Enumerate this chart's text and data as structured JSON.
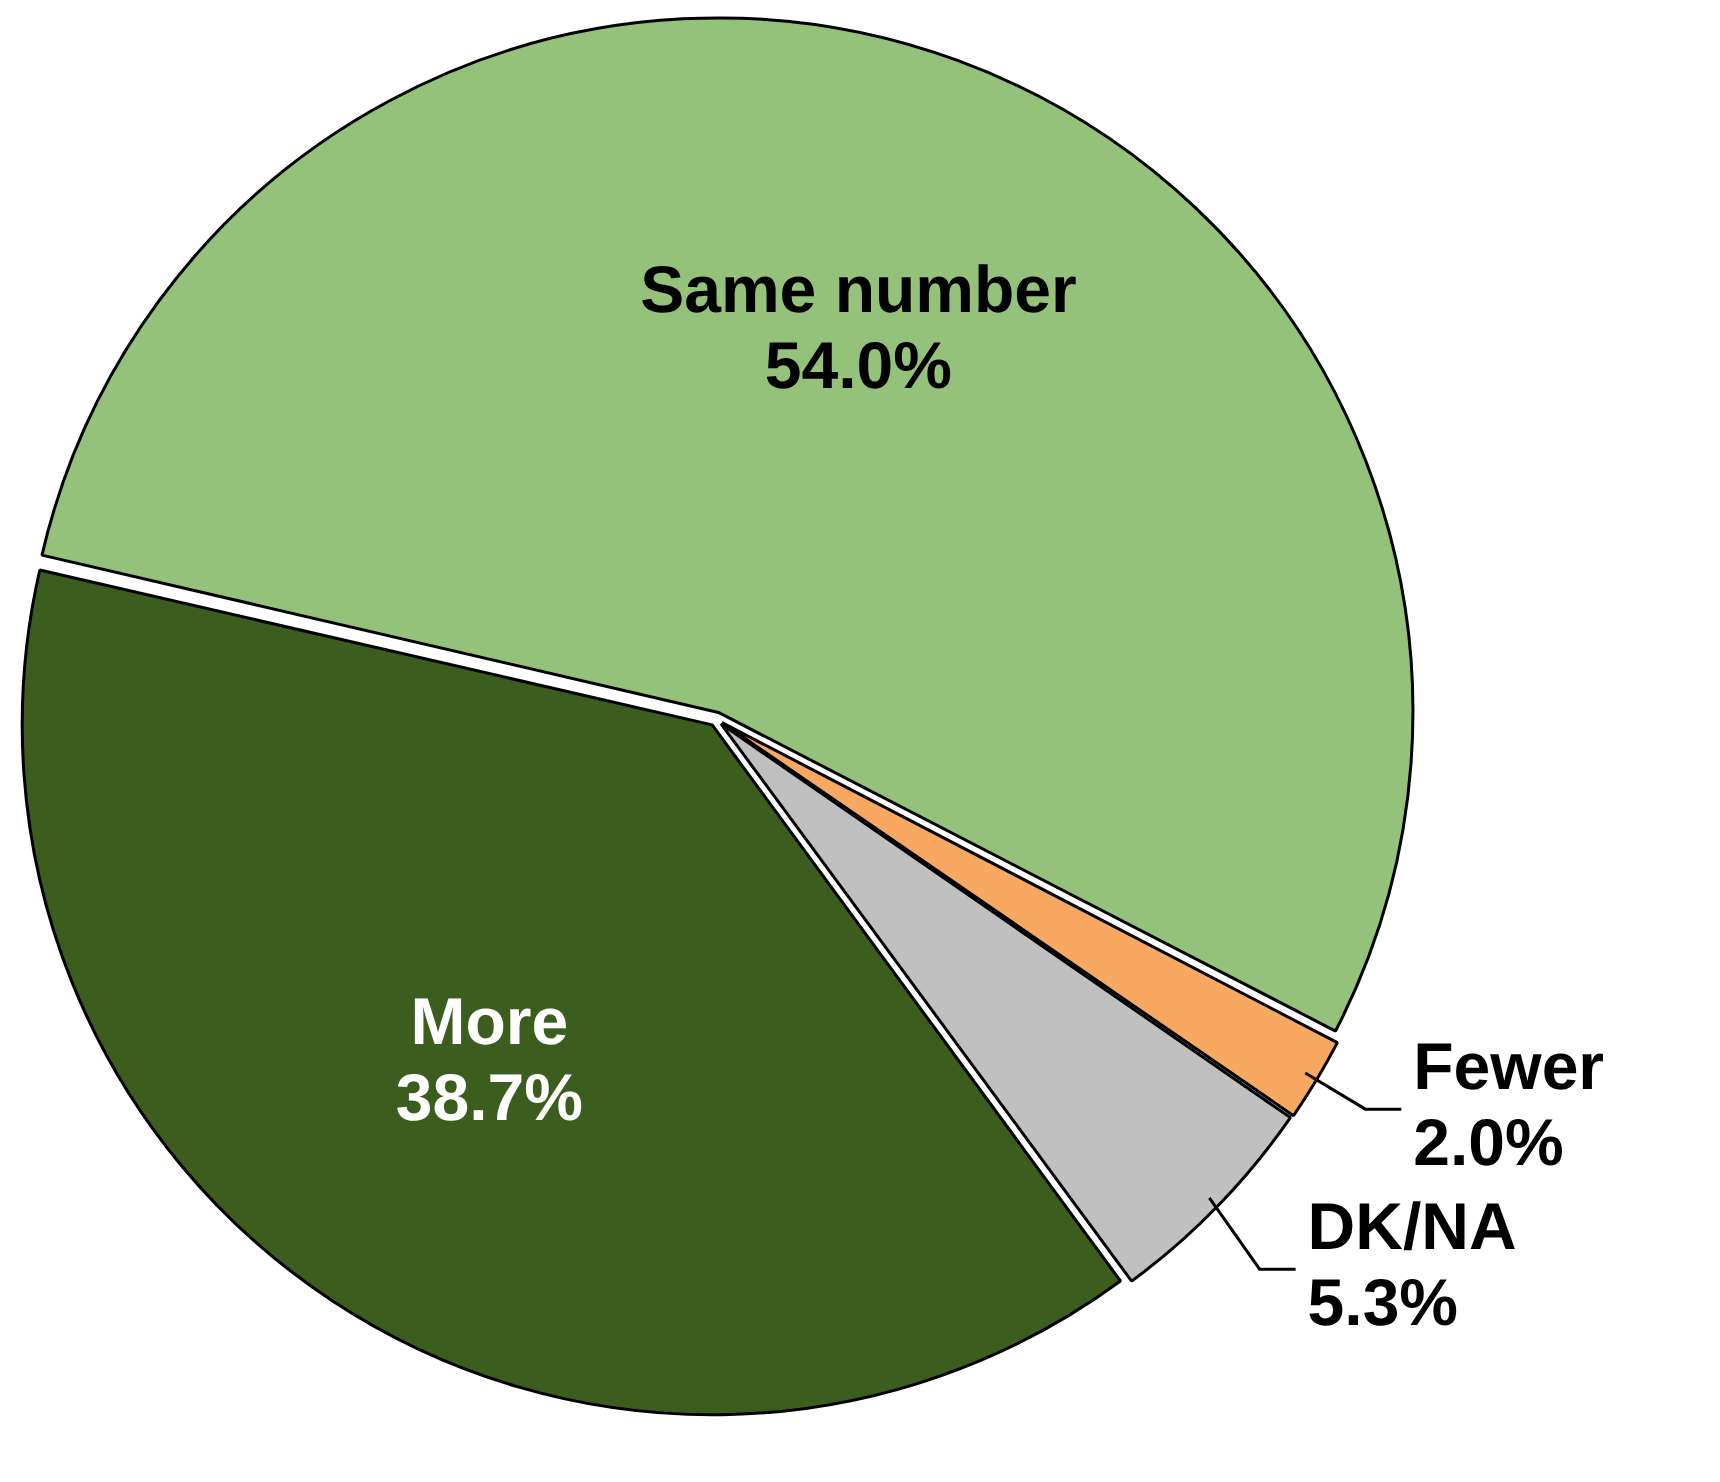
{
  "chart_data": {
    "type": "pie",
    "categories": [
      "Same number",
      "Fewer",
      "DK/NA",
      "More"
    ],
    "values": [
      54.0,
      2.0,
      5.3,
      38.7
    ],
    "value_labels": [
      "54.0%",
      "2.0%",
      "5.3%",
      "38.7%"
    ],
    "colors": [
      "#95c27a",
      "#f8a860",
      "#c0c0c0",
      "#3b5e1e"
    ],
    "legend": false
  }
}
